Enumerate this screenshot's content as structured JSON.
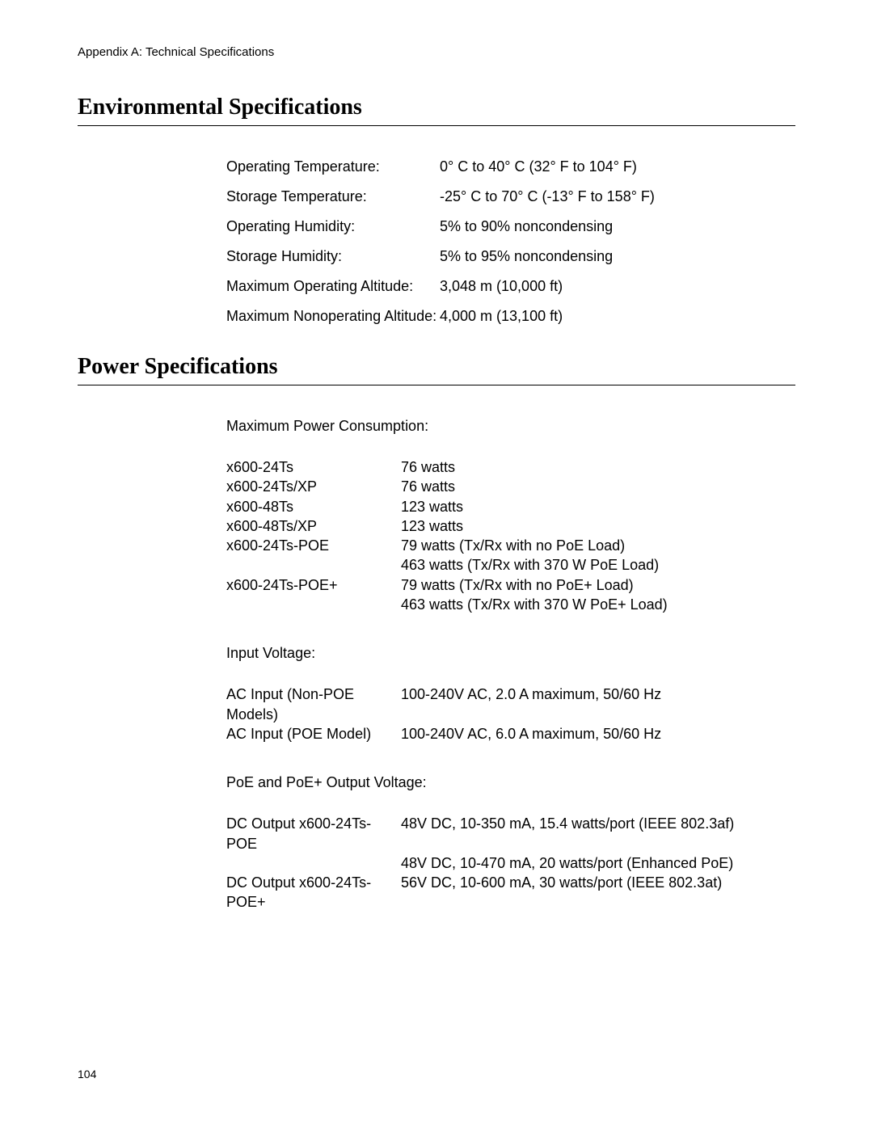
{
  "header": "Appendix A: Technical Specifications",
  "pageNumber": "104",
  "sections": {
    "env": {
      "title": "Environmental Specifications",
      "rows": [
        {
          "label": "Operating Temperature:",
          "value": "0° C to 40° C (32° F to 104° F)"
        },
        {
          "label": "Storage Temperature:",
          "value": "-25° C to 70° C (-13° F to 158° F)"
        },
        {
          "label": "Operating Humidity:",
          "value": "5% to 90% noncondensing"
        },
        {
          "label": "Storage Humidity:",
          "value": "5% to 95% noncondensing"
        },
        {
          "label": "Maximum Operating Altitude:",
          "value": "3,048 m (10,000 ft)"
        },
        {
          "label": "Maximum Nonoperating Altitude:",
          "value": "4,000 m (13,100 ft)"
        }
      ]
    },
    "power": {
      "title": "Power Specifications",
      "consumption": {
        "heading": "Maximum Power Consumption:",
        "rows": [
          {
            "label": "x600-24Ts",
            "values": [
              "76 watts"
            ]
          },
          {
            "label": "x600-24Ts/XP",
            "values": [
              "76 watts"
            ]
          },
          {
            "label": "x600-48Ts",
            "values": [
              "123 watts"
            ]
          },
          {
            "label": "x600-48Ts/XP",
            "values": [
              "123 watts"
            ]
          },
          {
            "label": "x600-24Ts-POE",
            "values": [
              "79 watts (Tx/Rx with no PoE Load)",
              "463 watts (Tx/Rx with 370 W PoE Load)"
            ]
          },
          {
            "label": "x600-24Ts-POE+",
            "values": [
              "79 watts (Tx/Rx with no PoE+ Load)",
              "463 watts (Tx/Rx with 370 W PoE+ Load)"
            ]
          }
        ]
      },
      "inputVoltage": {
        "heading": "Input Voltage:",
        "rows": [
          {
            "label": "AC Input (Non-POE Models)",
            "values": [
              "100-240V AC, 2.0 A maximum, 50/60 Hz"
            ]
          },
          {
            "label": "AC Input (POE Model)",
            "values": [
              "100-240V AC, 6.0 A maximum, 50/60 Hz"
            ]
          }
        ]
      },
      "poeOutput": {
        "heading": "PoE and PoE+ Output Voltage:",
        "rows": [
          {
            "label": "DC Output x600-24Ts-POE",
            "values": [
              "48V DC, 10-350 mA, 15.4 watts/port (IEEE 802.3af)",
              "48V DC, 10-470 mA, 20 watts/port (Enhanced PoE)"
            ]
          },
          {
            "label": "DC Output x600-24Ts-POE+",
            "values": [
              "56V DC, 10-600 mA, 30 watts/port (IEEE 802.3at)"
            ]
          }
        ]
      }
    }
  },
  "style": {
    "background_color": "#ffffff",
    "text_color": "#000000",
    "heading_font": "Times New Roman",
    "body_font": "Arial",
    "heading_fontsize_pt": 21,
    "body_fontsize_pt": 13.5,
    "header_fontsize_pt": 11
  }
}
